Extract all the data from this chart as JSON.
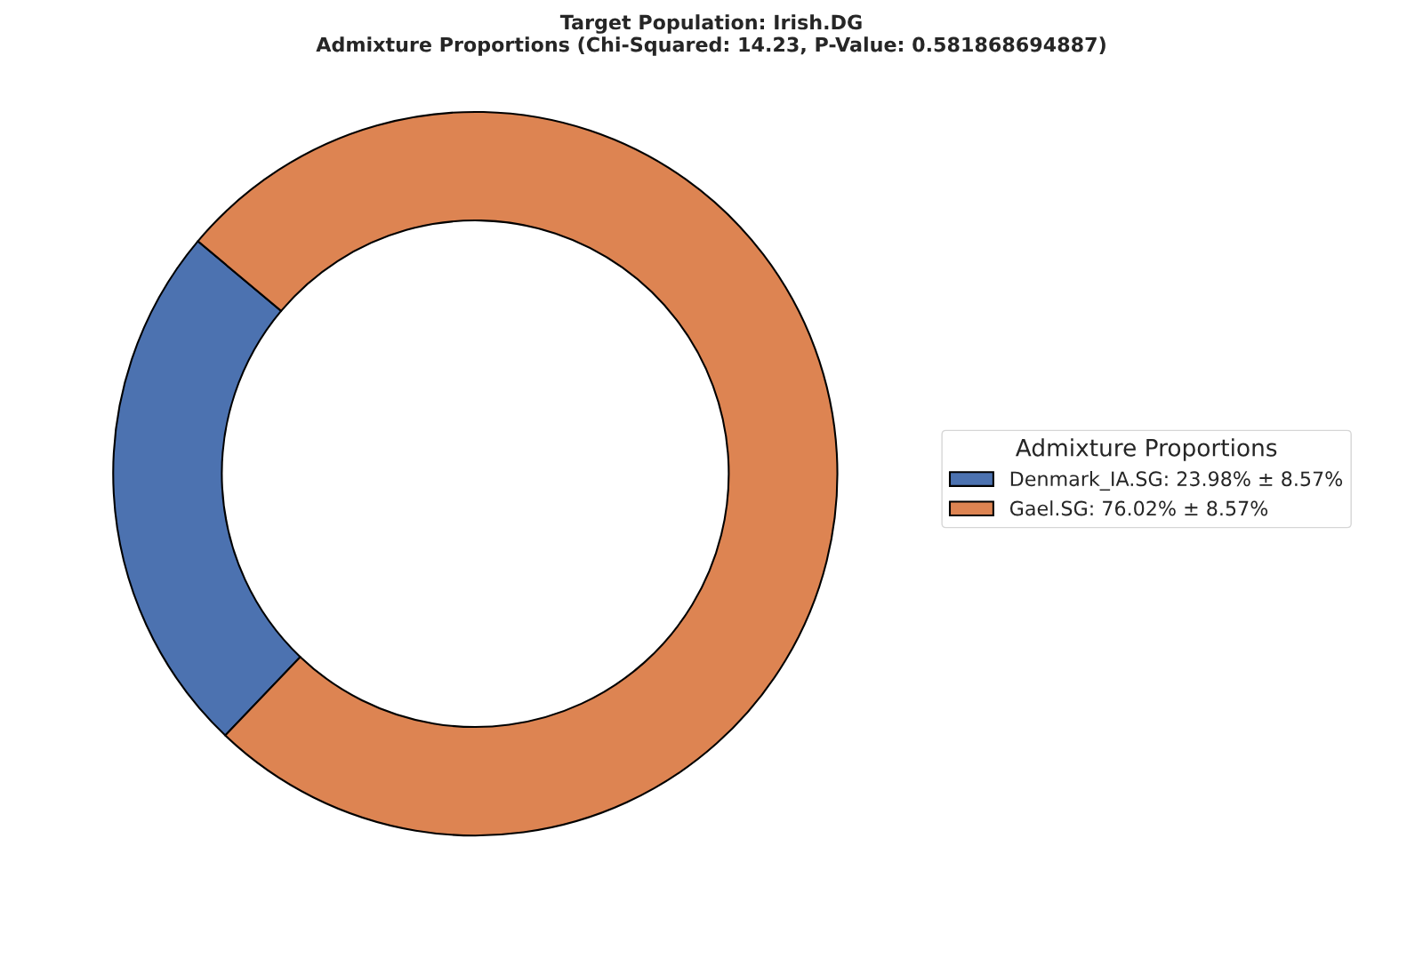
{
  "chart_data": {
    "type": "donut",
    "title": "Target Population: Irish.DG\nAdmixture Proportions (Chi-Squared: 14.23, P-Value: 0.581868694887)",
    "categories": [
      "Denmark_IA.SG: 23.98% ± 8.57%",
      "Gael.SG: 76.02% ± 8.57%"
    ],
    "values": [
      23.98,
      76.02
    ],
    "colors": [
      "#4c72b0",
      "#dd8452"
    ],
    "legend_title": "Admixture Proportions",
    "legend": "right"
  }
}
